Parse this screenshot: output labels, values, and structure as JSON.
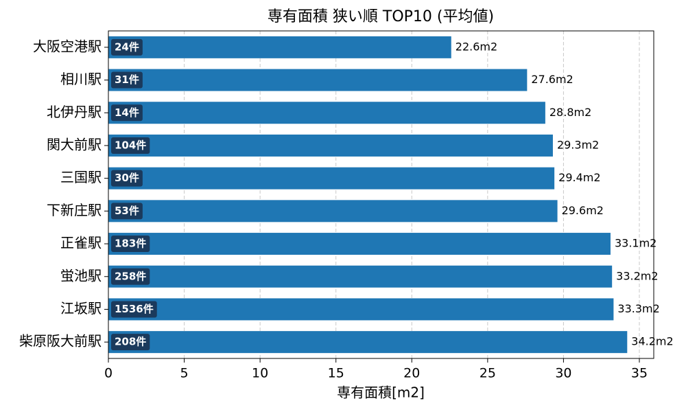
{
  "chart_data": {
    "type": "barh",
    "title": "専有面積 狭い順 TOP10 (平均値)",
    "x_label": "専有面積[m2]",
    "categories": [
      "大阪空港駅",
      "相川駅",
      "北伊丹駅",
      "関大前駅",
      "三国駅",
      "下新庄駅",
      "正雀駅",
      "蛍池駅",
      "江坂駅",
      "柴原阪大前駅"
    ],
    "values": [
      22.6,
      27.6,
      28.8,
      29.3,
      29.4,
      29.6,
      33.1,
      33.2,
      33.3,
      34.2
    ],
    "value_labels": [
      "22.6m2",
      "27.6m2",
      "28.8m2",
      "29.3m2",
      "29.4m2",
      "29.6m2",
      "33.1m2",
      "33.2m2",
      "33.3m2",
      "34.2m2"
    ],
    "count_labels": [
      "24件",
      "31件",
      "14件",
      "104件",
      "30件",
      "53件",
      "183件",
      "258件",
      "1536件",
      "208件"
    ],
    "color": "#1f77b4",
    "count_label_color": "#1b3a5c",
    "xlim": [
      0,
      35.95
    ],
    "xticks": [
      0,
      5,
      10,
      15,
      20,
      25,
      30,
      35
    ],
    "grid": true
  }
}
